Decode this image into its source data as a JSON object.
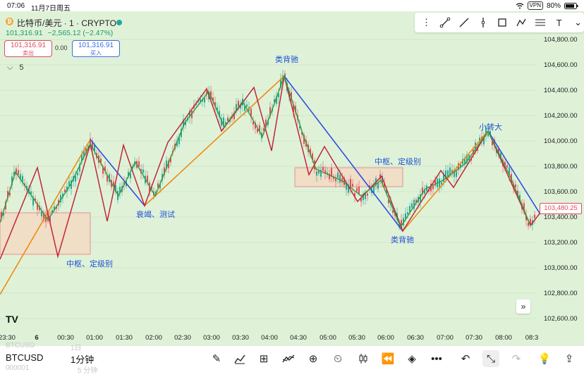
{
  "status": {
    "time": "07:06",
    "date": "11月7日周五",
    "vpn": "VPN",
    "battery": "80%"
  },
  "header": {
    "title": "比特币/美元 · 1 · CRYPTO",
    "price": "101,316.91",
    "change": "−2,565.12 (−2.47%)",
    "sell_price": "101,316.91",
    "sell_label": "卖出",
    "spread": "0.00",
    "buy_price": "101,316.91",
    "buy_label": "买入",
    "indicators_count": "5",
    "currency_icon": "₿"
  },
  "drawing_tools": [
    "trend-line-icon",
    "line-icon",
    "vertical-line-icon",
    "rectangle-icon",
    "path-icon",
    "fib-icon",
    "text-icon",
    "more-icon"
  ],
  "chart_data": {
    "type": "candlestick-zigzag",
    "y_ticks": [
      "104,800.00",
      "104,600.00",
      "104,400.00",
      "104,200.00",
      "104,000.00",
      "103,800.00",
      "103,600.00",
      "103,400.00",
      "103,200.00",
      "103,000.00",
      "102,800.00",
      "102,600.00"
    ],
    "x_ticks": [
      "23:30",
      "6",
      "00:30",
      "01:00",
      "01:30",
      "02:00",
      "02:30",
      "03:00",
      "03:30",
      "04:00",
      "04:30",
      "05:00",
      "05:30",
      "06:00",
      "06:30",
      "07:00",
      "07:30",
      "08:00",
      "08:3"
    ],
    "current_price": "103,480.25",
    "annotations": [
      "类背驰",
      "中枢、定级别",
      "衰竭、测试",
      "中枢、定级别",
      "类背驰",
      "小转大"
    ],
    "colors": {
      "up": "#26a69a",
      "down": "#e04b5a",
      "blue_line": "#2f4fe0",
      "orange_line": "#f08a10",
      "red_zig": "#c0263a",
      "green_zig": "#3a9a3a",
      "bg": "#dff2d8",
      "box": "#f2dcc6"
    }
  },
  "bottom": {
    "symbol": "BTCUSD",
    "interval": "1分钟",
    "ghost_symbol_top": "BTCUSD",
    "ghost_interval_top": "1日",
    "ghost_symbol_bottom": "000001",
    "ghost_interval_bottom": "5 分钟",
    "tools": [
      "pen-icon",
      "chart-type-icon",
      "grid-icon",
      "indicator-icon",
      "add-icon",
      "alarm-icon",
      "candles-icon",
      "rewind-icon",
      "layers-icon",
      "more-icon",
      "undo-icon",
      "collapse-icon",
      "redo-icon",
      "idea-icon",
      "share-icon"
    ]
  }
}
